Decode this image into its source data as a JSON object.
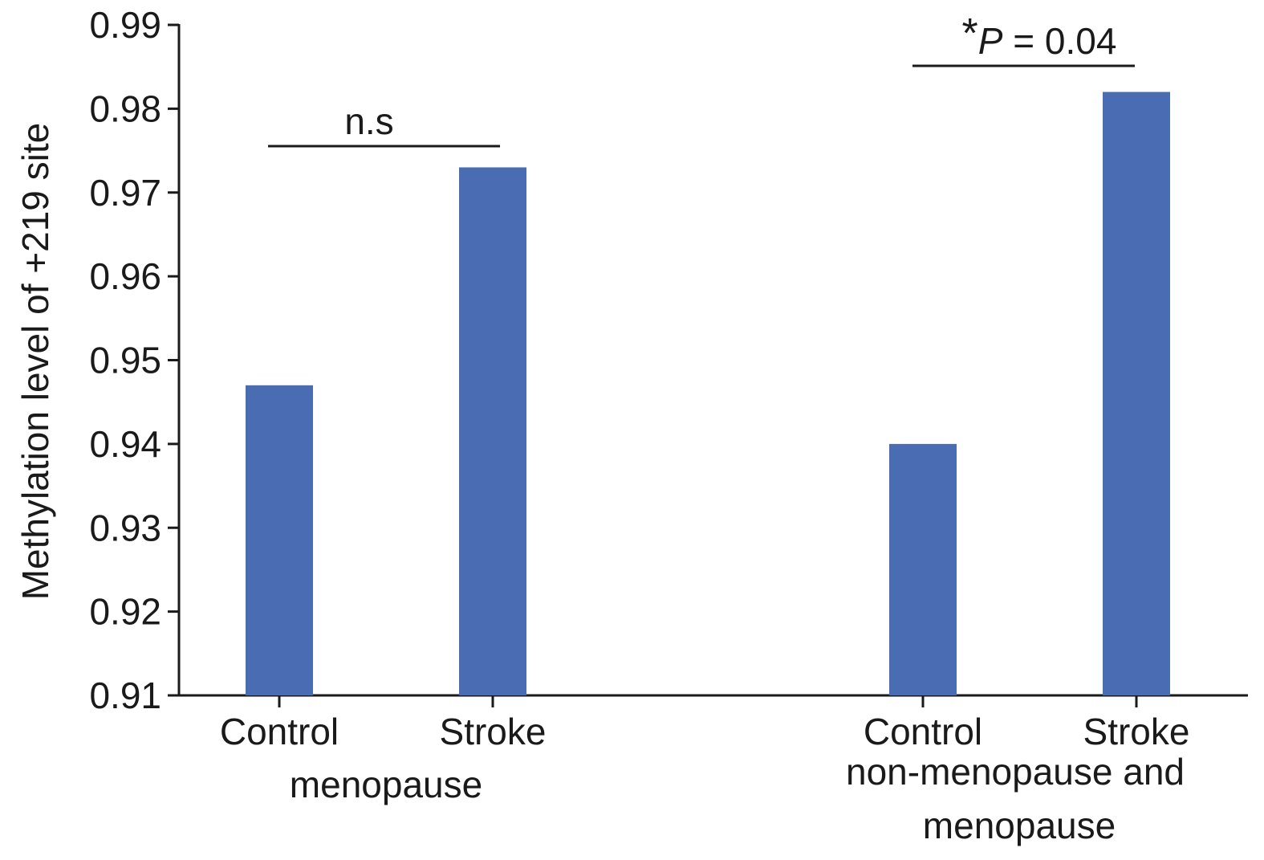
{
  "chart_data": {
    "type": "bar",
    "ylabel": "Methylation level of +219 site",
    "ylim": [
      0.91,
      0.99
    ],
    "yticks": [
      0.91,
      0.92,
      0.93,
      0.94,
      0.95,
      0.96,
      0.97,
      0.98,
      0.99
    ],
    "ytick_labels": [
      "0.91",
      "0.92",
      "0.93",
      "0.94",
      "0.95",
      "0.96",
      "0.97",
      "0.98",
      "0.99"
    ],
    "bar_color": "#4a6cb3",
    "groups": [
      {
        "label": "menopause",
        "categories": [
          "Control",
          "Stroke"
        ],
        "values": [
          0.947,
          0.973
        ],
        "significance": {
          "star": "",
          "italic": "",
          "text": "n.s"
        }
      },
      {
        "label_lines": [
          "non-menopause and",
          "menopause"
        ],
        "categories": [
          "Control",
          "Stroke"
        ],
        "values": [
          0.94,
          0.982
        ],
        "significance": {
          "star": "*",
          "italic": "P",
          "text": " = 0.04"
        }
      }
    ]
  }
}
